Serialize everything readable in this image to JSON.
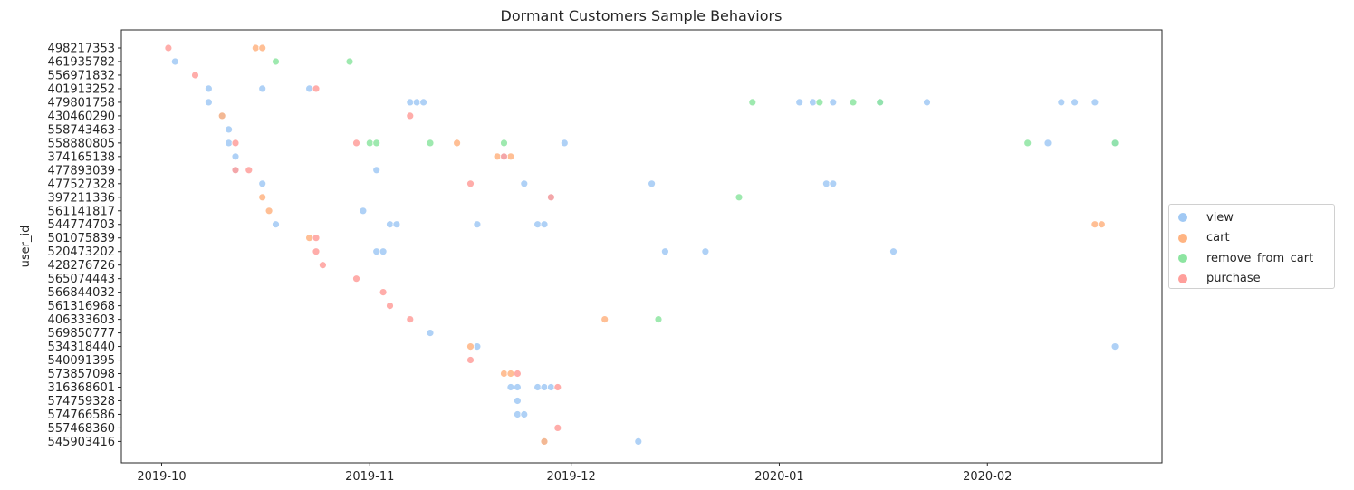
{
  "chart_data": {
    "type": "scatter",
    "title": "Dormant Customers Sample Behaviors",
    "xlabel": "",
    "ylabel": "user_id",
    "x_ticks": [
      "2019-10",
      "2019-11",
      "2019-12",
      "2020-01",
      "2020-02"
    ],
    "xlim": [
      "2019-09-25",
      "2020-02-27"
    ],
    "users": [
      "498217353",
      "461935782",
      "556971832",
      "401913252",
      "479801758",
      "430460290",
      "558743463",
      "558880805",
      "374165138",
      "477893039",
      "477527328",
      "397211336",
      "561141817",
      "544774703",
      "501075839",
      "520473202",
      "428276726",
      "565074443",
      "566844032",
      "561316968",
      "406333603",
      "569850777",
      "534318440",
      "540091395",
      "573857098",
      "316368601",
      "574759328",
      "574766586",
      "557468360",
      "545903416"
    ],
    "legend": [
      "view",
      "cart",
      "remove_from_cart",
      "purchase"
    ],
    "colors": {
      "view": "#a1c9f4",
      "cart": "#ffb482",
      "remove_from_cart": "#8de5a1",
      "purchase": "#ff9f9b"
    },
    "grid": false,
    "legend_position": "outside-right",
    "series": [
      {
        "name": "view",
        "points": [
          [
            "2019-10-03",
            "461935782"
          ],
          [
            "2019-10-08",
            "401913252"
          ],
          [
            "2019-10-16",
            "401913252"
          ],
          [
            "2019-10-23",
            "401913252"
          ],
          [
            "2019-10-08",
            "479801758"
          ],
          [
            "2019-11-07",
            "479801758"
          ],
          [
            "2019-11-08",
            "479801758"
          ],
          [
            "2019-11-09",
            "479801758"
          ],
          [
            "2020-01-04",
            "479801758"
          ],
          [
            "2020-01-06",
            "479801758"
          ],
          [
            "2020-01-09",
            "479801758"
          ],
          [
            "2020-01-16",
            "479801758"
          ],
          [
            "2020-01-23",
            "479801758"
          ],
          [
            "2020-02-12",
            "479801758"
          ],
          [
            "2020-02-14",
            "479801758"
          ],
          [
            "2020-02-17",
            "479801758"
          ],
          [
            "2019-10-10",
            "430460290"
          ],
          [
            "2019-10-11",
            "558743463"
          ],
          [
            "2019-10-11",
            "558880805"
          ],
          [
            "2019-11-30",
            "558880805"
          ],
          [
            "2020-02-10",
            "558880805"
          ],
          [
            "2020-02-20",
            "558880805"
          ],
          [
            "2019-10-12",
            "374165138"
          ],
          [
            "2019-11-21",
            "374165138"
          ],
          [
            "2019-10-12",
            "477893039"
          ],
          [
            "2019-11-02",
            "477893039"
          ],
          [
            "2019-10-16",
            "477527328"
          ],
          [
            "2019-11-24",
            "477527328"
          ],
          [
            "2019-12-13",
            "477527328"
          ],
          [
            "2020-01-08",
            "477527328"
          ],
          [
            "2020-01-09",
            "477527328"
          ],
          [
            "2019-11-28",
            "397211336"
          ],
          [
            "2019-10-31",
            "561141817"
          ],
          [
            "2019-10-18",
            "544774703"
          ],
          [
            "2019-11-04",
            "544774703"
          ],
          [
            "2019-11-05",
            "544774703"
          ],
          [
            "2019-11-17",
            "544774703"
          ],
          [
            "2019-11-26",
            "544774703"
          ],
          [
            "2019-11-27",
            "544774703"
          ],
          [
            "2019-11-02",
            "520473202"
          ],
          [
            "2019-11-03",
            "520473202"
          ],
          [
            "2019-12-15",
            "520473202"
          ],
          [
            "2019-12-21",
            "520473202"
          ],
          [
            "2020-01-18",
            "520473202"
          ],
          [
            "2019-11-10",
            "569850777"
          ],
          [
            "2019-11-17",
            "534318440"
          ],
          [
            "2020-02-20",
            "534318440"
          ],
          [
            "2019-11-22",
            "316368601"
          ],
          [
            "2019-11-23",
            "316368601"
          ],
          [
            "2019-11-26",
            "316368601"
          ],
          [
            "2019-11-27",
            "316368601"
          ],
          [
            "2019-11-28",
            "316368601"
          ],
          [
            "2019-11-23",
            "574759328"
          ],
          [
            "2019-11-23",
            "574766586"
          ],
          [
            "2019-11-24",
            "574766586"
          ],
          [
            "2019-11-27",
            "545903416"
          ],
          [
            "2019-12-11",
            "545903416"
          ]
        ]
      },
      {
        "name": "cart",
        "points": [
          [
            "2019-10-15",
            "498217353"
          ],
          [
            "2019-10-16",
            "498217353"
          ],
          [
            "2019-10-10",
            "430460290"
          ],
          [
            "2019-11-14",
            "558880805"
          ],
          [
            "2019-11-20",
            "374165138"
          ],
          [
            "2019-10-16",
            "397211336"
          ],
          [
            "2019-10-17",
            "561141817"
          ],
          [
            "2020-02-17",
            "544774703"
          ],
          [
            "2020-02-18",
            "544774703"
          ],
          [
            "2019-10-23",
            "501075839"
          ],
          [
            "2019-12-06",
            "406333603"
          ],
          [
            "2019-11-16",
            "534318440"
          ],
          [
            "2019-11-21",
            "573857098"
          ],
          [
            "2019-11-22",
            "573857098"
          ],
          [
            "2019-11-22",
            "374165138"
          ],
          [
            "2019-11-27",
            "545903416"
          ]
        ]
      },
      {
        "name": "remove_from_cart",
        "points": [
          [
            "2019-10-18",
            "461935782"
          ],
          [
            "2019-10-29",
            "461935782"
          ],
          [
            "2019-12-28",
            "479801758"
          ],
          [
            "2020-01-07",
            "479801758"
          ],
          [
            "2020-01-12",
            "479801758"
          ],
          [
            "2020-01-16",
            "479801758"
          ],
          [
            "2019-11-01",
            "558880805"
          ],
          [
            "2019-11-02",
            "558880805"
          ],
          [
            "2019-11-10",
            "558880805"
          ],
          [
            "2019-11-21",
            "558880805"
          ],
          [
            "2020-02-07",
            "558880805"
          ],
          [
            "2020-02-20",
            "558880805"
          ],
          [
            "2019-12-26",
            "397211336"
          ],
          [
            "2019-12-14",
            "406333603"
          ]
        ]
      },
      {
        "name": "purchase",
        "points": [
          [
            "2019-10-02",
            "498217353"
          ],
          [
            "2019-10-06",
            "556971832"
          ],
          [
            "2019-10-24",
            "401913252"
          ],
          [
            "2019-11-07",
            "430460290"
          ],
          [
            "2019-10-12",
            "558880805"
          ],
          [
            "2019-10-30",
            "558880805"
          ],
          [
            "2019-11-21",
            "374165138"
          ],
          [
            "2019-10-12",
            "477893039"
          ],
          [
            "2019-10-14",
            "477893039"
          ],
          [
            "2019-11-16",
            "477527328"
          ],
          [
            "2019-11-28",
            "397211336"
          ],
          [
            "2019-10-24",
            "501075839"
          ],
          [
            "2019-10-24",
            "520473202"
          ],
          [
            "2019-10-25",
            "428276726"
          ],
          [
            "2019-10-30",
            "565074443"
          ],
          [
            "2019-11-03",
            "566844032"
          ],
          [
            "2019-11-04",
            "561316968"
          ],
          [
            "2019-11-07",
            "406333603"
          ],
          [
            "2019-11-16",
            "540091395"
          ],
          [
            "2019-11-23",
            "573857098"
          ],
          [
            "2019-11-29",
            "316368601"
          ],
          [
            "2019-11-29",
            "557468360"
          ]
        ]
      }
    ]
  }
}
